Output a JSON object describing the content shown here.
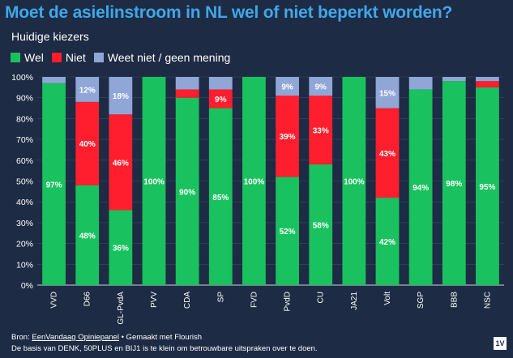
{
  "chart_data": {
    "type": "bar",
    "stacked": true,
    "title": "Moet de asielinstroom in NL wel of niet beperkt worden?",
    "subtitle": "Huidige kiezers",
    "categories": [
      "VVD",
      "D66",
      "GL-PvdA",
      "PVV",
      "CDA",
      "SP",
      "FVD",
      "PvdD",
      "CU",
      "JA21",
      "Volt",
      "SGP",
      "BBB",
      "NSC"
    ],
    "series": [
      {
        "name": "Wel",
        "color": "#19c25e",
        "values": [
          97,
          48,
          36,
          100,
          90,
          85,
          100,
          52,
          58,
          100,
          42,
          94,
          98,
          95
        ],
        "labels": [
          "97%",
          "48%",
          "36%",
          "100%",
          "90%",
          "85%",
          "100%",
          "52%",
          "58%",
          "100%",
          "42%",
          "94%",
          "98%",
          "95%"
        ]
      },
      {
        "name": "Niet",
        "color": "#ff1e2d",
        "values": [
          0,
          40,
          46,
          0,
          4,
          9,
          0,
          39,
          33,
          0,
          43,
          0,
          0,
          3
        ],
        "labels": [
          "",
          "40%",
          "46%",
          "",
          "",
          "9%",
          "",
          "39%",
          "33%",
          "",
          "43%",
          "",
          "",
          ""
        ]
      },
      {
        "name": "Weet niet / geen mening",
        "color": "#8fa6d6",
        "values": [
          3,
          12,
          18,
          0,
          6,
          6,
          0,
          9,
          9,
          0,
          15,
          6,
          2,
          2
        ],
        "labels": [
          "",
          "12%",
          "18%",
          "",
          "",
          "",
          "",
          "9%",
          "9%",
          "",
          "15%",
          "",
          "",
          ""
        ]
      }
    ],
    "ylim": [
      0,
      100
    ],
    "yticks": [
      "0%",
      "10%",
      "20%",
      "30%",
      "40%",
      "50%",
      "60%",
      "70%",
      "80%",
      "90%",
      "100%"
    ],
    "legend": "top-left"
  },
  "footer": {
    "source_prefix": "Bron: ",
    "source_link": "EenVandaag Opiniepanel",
    "source_suffix": " • Gemaakt met Flourish",
    "note": "De basis van DENK, 50PLUS en BIJ1 is te klein om betrouwbare uitspraken over te doen."
  },
  "logo": "1V"
}
